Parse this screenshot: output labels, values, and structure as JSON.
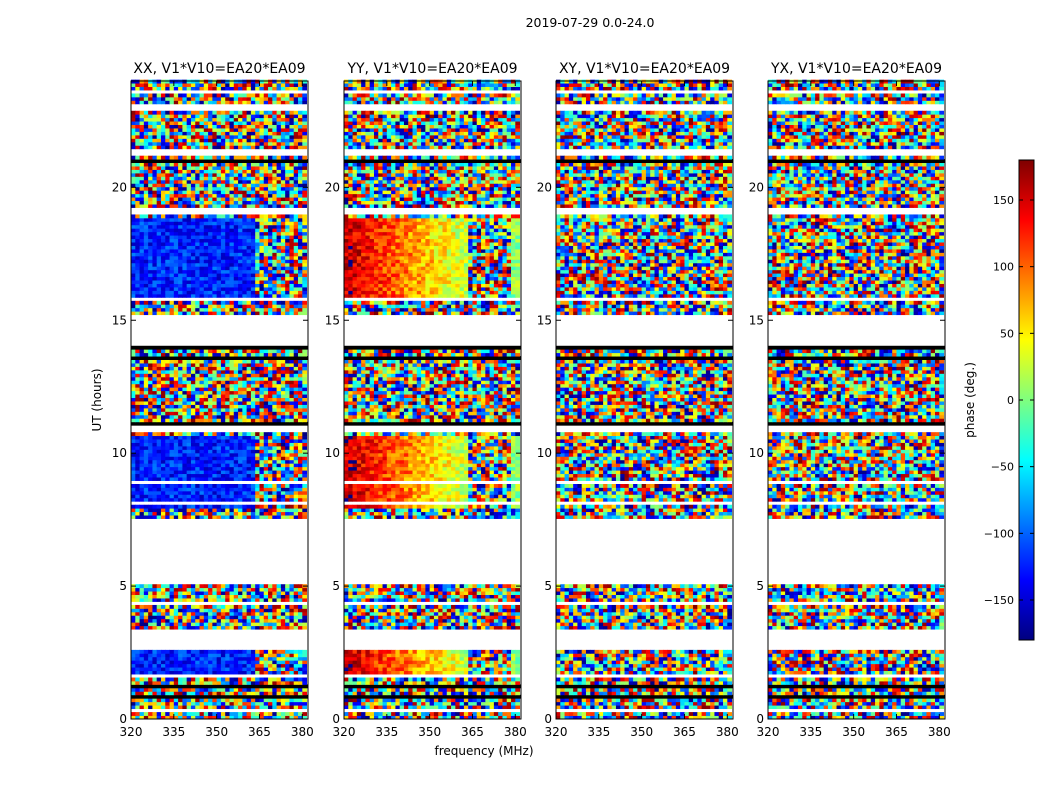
{
  "figure": {
    "suptitle": "2019-07-29 0.0-24.0"
  },
  "chart_data": {
    "type": "heatmap",
    "title": "2019-07-29 0.0-24.0",
    "xlabel": "frequency (MHz)",
    "ylabel": "UT (hours)",
    "xlim": [
      320,
      382
    ],
    "ylim": [
      0,
      24
    ],
    "xticks": [
      320,
      335,
      350,
      365,
      380
    ],
    "yticks": [
      0,
      5,
      10,
      15,
      20
    ],
    "colorbar": {
      "label": "phase (deg.)",
      "range": [
        -180,
        180
      ],
      "ticks": [
        150,
        100,
        50,
        0,
        -50,
        -100,
        -150
      ],
      "colormap": "jet",
      "colors": [
        "#00007f",
        "#0000ff",
        "#007fff",
        "#00ffff",
        "#7fff7f",
        "#ffff00",
        "#ff7f00",
        "#ff0000",
        "#7f0000"
      ]
    },
    "data_gaps_hours": [
      [
        0.3,
        0.45
      ],
      [
        1.55,
        1.7
      ],
      [
        2.6,
        3.4
      ],
      [
        4.35,
        4.45
      ],
      [
        5.05,
        7.55
      ],
      [
        7.75,
        7.85
      ],
      [
        8.1,
        8.25
      ],
      [
        8.85,
        8.95
      ],
      [
        9.45,
        9.55
      ],
      [
        10.75,
        11.0
      ],
      [
        14.0,
        15.2
      ],
      [
        15.7,
        15.85
      ],
      [
        18.95,
        19.25
      ],
      [
        21.25,
        21.4
      ],
      [
        22.9,
        23.1
      ],
      [
        23.5,
        23.6
      ]
    ],
    "panels": [
      {
        "title": "XX, V1*V10=EA20*EA09",
        "pol": "XX",
        "baseline": "V1*V10=EA20*EA09",
        "coherent_phase_deg": -125,
        "phase_slope_deg_per_mhz": 0,
        "wrap_start_mhz": 363
      },
      {
        "title": "YY, V1*V10=EA20*EA09",
        "pol": "YY",
        "baseline": "V1*V10=EA20*EA09",
        "coherent_phase_deg": 160,
        "phase_slope_deg_per_mhz": -3.2,
        "wrap_start_mhz": 363
      },
      {
        "title": "XY, V1*V10=EA20*EA09",
        "pol": "XY",
        "baseline": "V1*V10=EA20*EA09",
        "coherent_phase_deg": null,
        "phase_slope_deg_per_mhz": 0,
        "wrap_start_mhz": 363
      },
      {
        "title": "YX, V1*V10=EA20*EA09",
        "pol": "YX",
        "baseline": "V1*V10=EA20*EA09",
        "coherent_phase_deg": null,
        "phase_slope_deg_per_mhz": 0,
        "wrap_start_mhz": 363
      }
    ]
  }
}
